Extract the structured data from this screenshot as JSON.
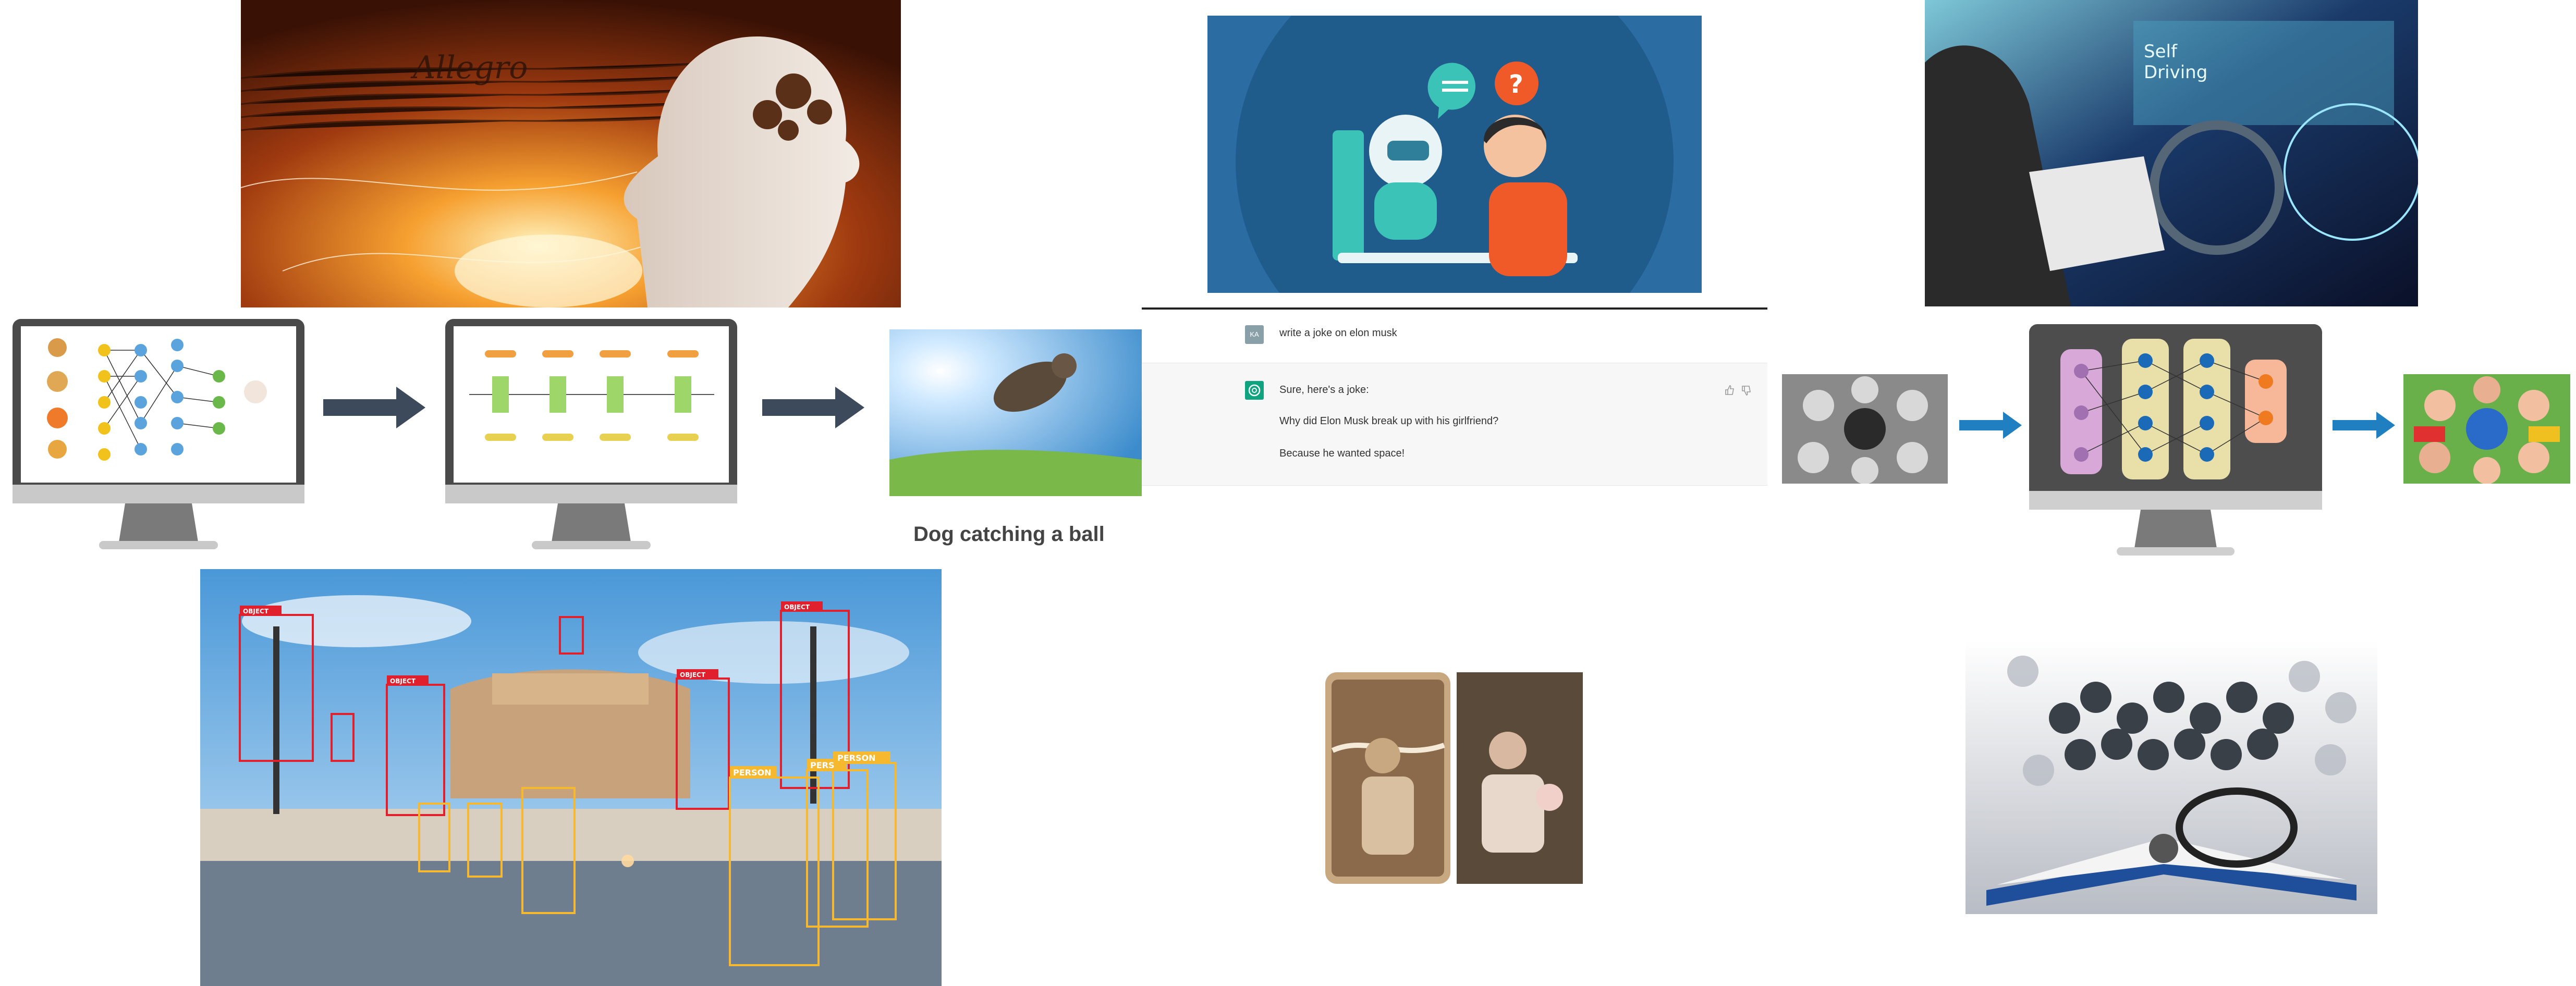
{
  "chat": {
    "user_avatar": "KA",
    "user_message": "write a joke on elon musk",
    "bot_line1": "Sure, here's a joke:",
    "bot_line2": "Why did Elon Musk break up with his girlfriend?",
    "bot_line3": "Because he wanted space!"
  },
  "caption": "Dog catching a ball",
  "detection": {
    "object_label": "OBJECT",
    "person_label": "PERSON",
    "person_partial_label": "PERS"
  },
  "colors": {
    "monitor_frame": "#4a4a4a",
    "arrow_dark": "#3d4a5c",
    "arrow_blue": "#1f7fc0",
    "detect_red": "#e0202c",
    "detect_yellow": "#f5b82e",
    "chatgpt_green": "#10a37f"
  }
}
